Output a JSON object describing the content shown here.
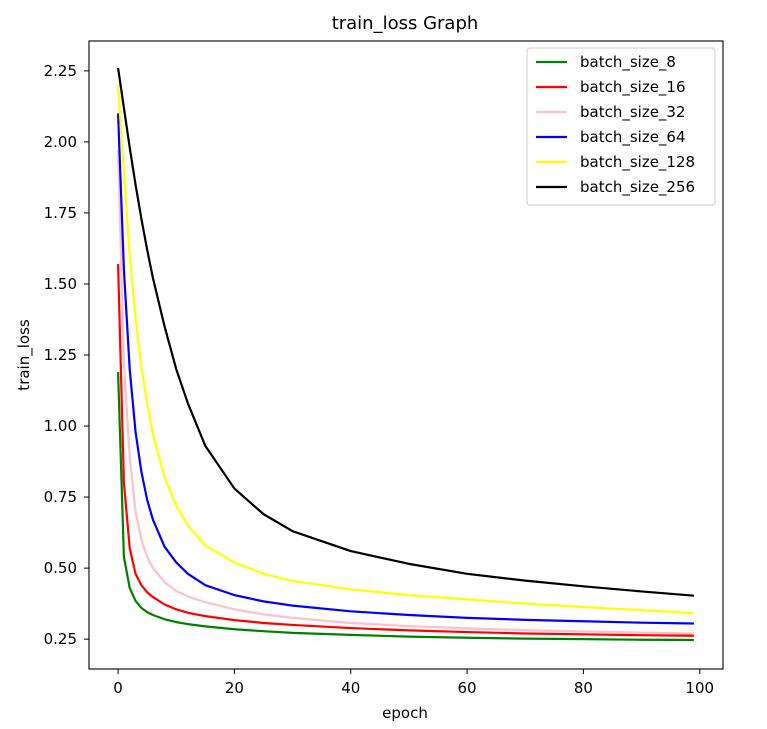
{
  "chart_data": {
    "type": "line",
    "title": "train_loss Graph",
    "xlabel": "epoch",
    "ylabel": "train_loss",
    "xlim": [
      -5,
      104
    ],
    "ylim": [
      0.145,
      2.355
    ],
    "xticks": [
      0,
      20,
      40,
      60,
      80,
      100
    ],
    "xtick_labels": [
      "0",
      "20",
      "40",
      "60",
      "80",
      "100"
    ],
    "yticks": [
      0.25,
      0.5,
      0.75,
      1.0,
      1.25,
      1.5,
      1.75,
      2.0,
      2.25
    ],
    "ytick_labels": [
      "0.25",
      "0.50",
      "0.75",
      "1.00",
      "1.25",
      "1.50",
      "1.75",
      "2.00",
      "2.25"
    ],
    "grid": false,
    "legend_position": "top-right",
    "x": [
      0,
      1,
      2,
      3,
      4,
      5,
      6,
      8,
      10,
      12,
      15,
      20,
      25,
      30,
      40,
      50,
      60,
      70,
      80,
      90,
      99
    ],
    "series": [
      {
        "name": "batch_size_8",
        "color": "#008000",
        "values": [
          1.19,
          0.54,
          0.43,
          0.385,
          0.36,
          0.345,
          0.335,
          0.32,
          0.31,
          0.303,
          0.295,
          0.285,
          0.278,
          0.272,
          0.265,
          0.259,
          0.255,
          0.252,
          0.25,
          0.248,
          0.247
        ]
      },
      {
        "name": "batch_size_16",
        "color": "#ff0000",
        "values": [
          1.57,
          0.8,
          0.57,
          0.48,
          0.44,
          0.415,
          0.398,
          0.372,
          0.355,
          0.343,
          0.331,
          0.317,
          0.307,
          0.3,
          0.289,
          0.281,
          0.275,
          0.27,
          0.267,
          0.264,
          0.262
        ]
      },
      {
        "name": "batch_size_32",
        "color": "#ffc0cb",
        "values": [
          1.97,
          1.22,
          0.89,
          0.7,
          0.6,
          0.54,
          0.5,
          0.45,
          0.42,
          0.4,
          0.38,
          0.355,
          0.337,
          0.325,
          0.307,
          0.296,
          0.288,
          0.282,
          0.277,
          0.273,
          0.27
        ]
      },
      {
        "name": "batch_size_64",
        "color": "#0000ff",
        "values": [
          2.1,
          1.55,
          1.2,
          0.98,
          0.84,
          0.74,
          0.67,
          0.575,
          0.52,
          0.48,
          0.44,
          0.405,
          0.383,
          0.368,
          0.348,
          0.335,
          0.325,
          0.318,
          0.313,
          0.308,
          0.305
        ]
      },
      {
        "name": "batch_size_128",
        "color": "#ffff00",
        "values": [
          2.2,
          1.9,
          1.6,
          1.38,
          1.21,
          1.08,
          0.97,
          0.82,
          0.72,
          0.65,
          0.58,
          0.52,
          0.48,
          0.455,
          0.425,
          0.405,
          0.39,
          0.375,
          0.363,
          0.352,
          0.342
        ]
      },
      {
        "name": "batch_size_256",
        "color": "#000000",
        "values": [
          2.26,
          2.12,
          1.98,
          1.85,
          1.73,
          1.62,
          1.52,
          1.35,
          1.2,
          1.08,
          0.93,
          0.78,
          0.69,
          0.63,
          0.56,
          0.515,
          0.48,
          0.456,
          0.436,
          0.418,
          0.403
        ]
      }
    ]
  }
}
